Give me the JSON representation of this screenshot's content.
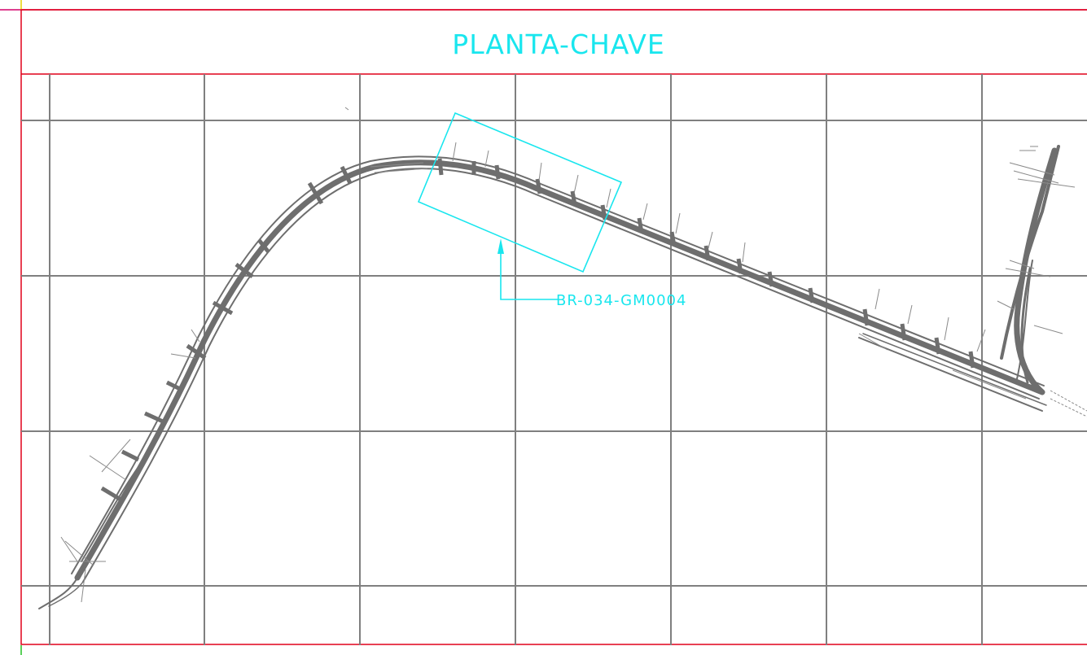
{
  "drawing": {
    "title": "PLANTA-CHAVE",
    "viewport_label": "BR-034-GM0004"
  },
  "colors": {
    "background": "#ffffff",
    "frame_line": "#e0001a",
    "top_border": "#d4006a",
    "grid_line": "#7f7f7f",
    "road": "#6e6e6e",
    "annotation": "#19e6ee"
  }
}
